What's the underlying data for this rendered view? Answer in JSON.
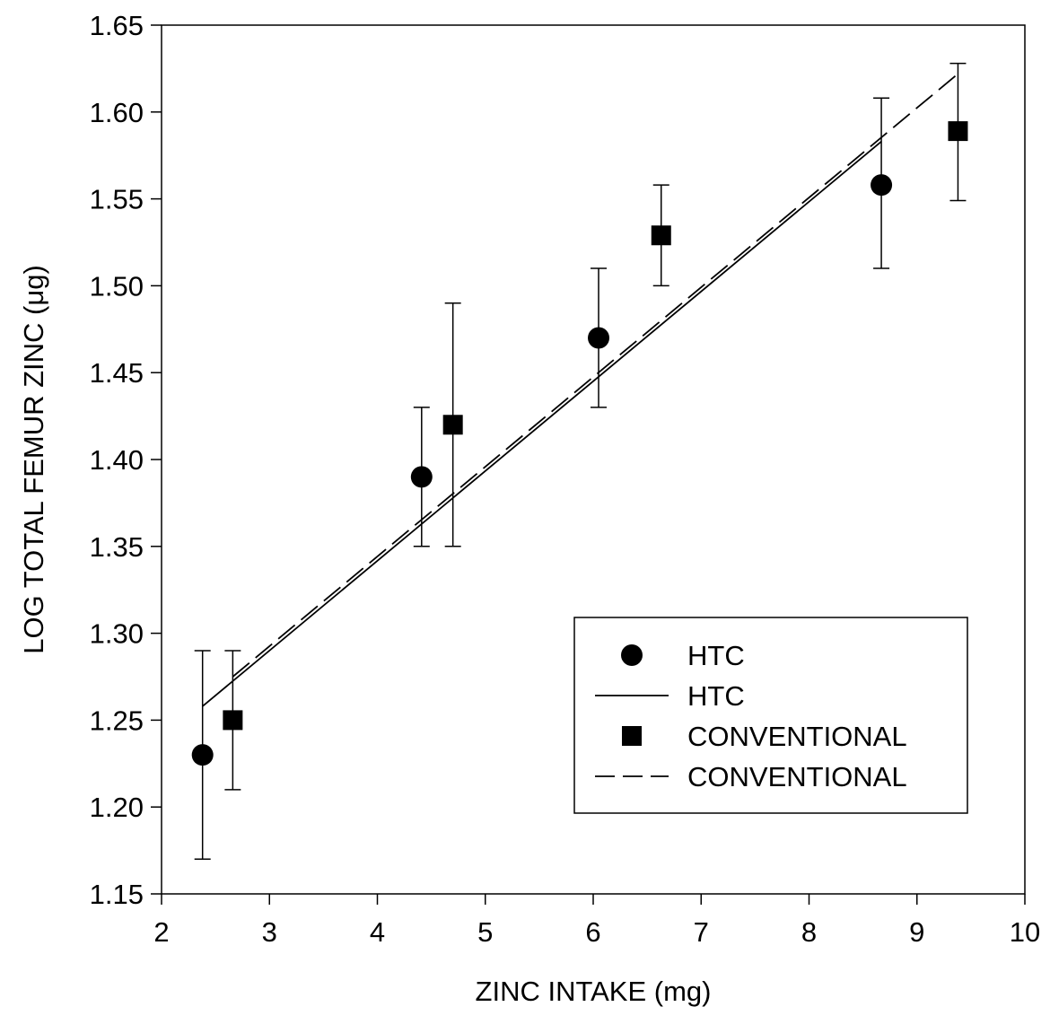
{
  "chart_data": {
    "type": "scatter",
    "title": "",
    "xlabel": "ZINC INTAKE (mg)",
    "ylabel": "LOG TOTAL FEMUR ZINC (μg)",
    "xlim": [
      2,
      10
    ],
    "ylim": [
      1.15,
      1.65
    ],
    "xticks": [
      "2",
      "3",
      "4",
      "5",
      "6",
      "7",
      "8",
      "9",
      "10"
    ],
    "yticks": [
      "1.15",
      "1.20",
      "1.25",
      "1.30",
      "1.35",
      "1.40",
      "1.45",
      "1.50",
      "1.55",
      "1.60",
      "1.65"
    ],
    "grid": false,
    "legend_position": "lower-right",
    "series": [
      {
        "name": "HTC",
        "kind": "points",
        "marker": "circle",
        "x": [
          2.38,
          4.41,
          6.05,
          8.67
        ],
        "y": [
          1.23,
          1.39,
          1.47,
          1.558
        ],
        "err_low": [
          1.17,
          1.35,
          1.43,
          1.51
        ],
        "err_high": [
          1.29,
          1.43,
          1.51,
          1.608
        ]
      },
      {
        "name": "HTC",
        "kind": "line",
        "style": "solid",
        "x": [
          2.38,
          8.67
        ],
        "y": [
          1.258,
          1.583
        ]
      },
      {
        "name": "CONVENTIONAL",
        "kind": "points",
        "marker": "square",
        "x": [
          2.66,
          4.7,
          6.63,
          9.38
        ],
        "y": [
          1.25,
          1.42,
          1.529,
          1.589
        ],
        "err_low": [
          1.21,
          1.35,
          1.5,
          1.549
        ],
        "err_high": [
          1.29,
          1.49,
          1.558,
          1.628
        ]
      },
      {
        "name": "CONVENTIONAL",
        "kind": "line",
        "style": "dashed",
        "x": [
          2.66,
          9.38
        ],
        "y": [
          1.275,
          1.622
        ]
      }
    ]
  }
}
